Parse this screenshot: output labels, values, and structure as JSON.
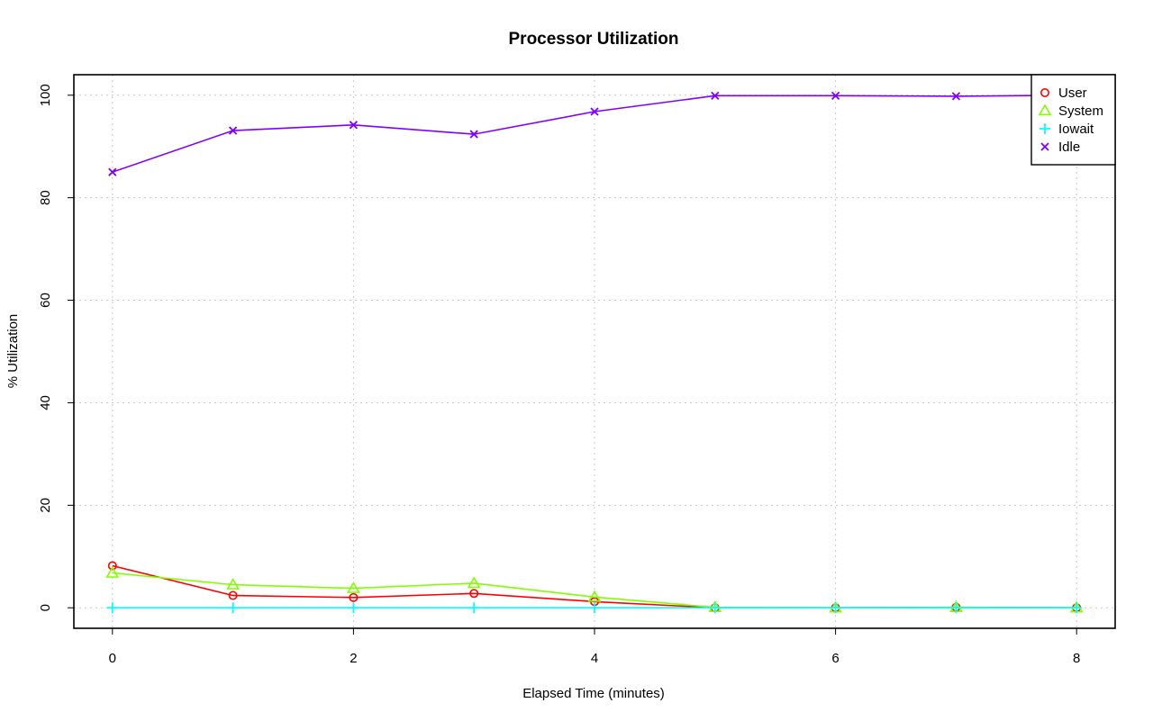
{
  "chart_data": {
    "type": "line",
    "title": "Processor Utilization",
    "xlabel": "Elapsed Time (minutes)",
    "ylabel": "% Utilization",
    "xlim": [
      -0.32,
      8.32
    ],
    "ylim": [
      -4,
      104
    ],
    "xticks": [
      0,
      2,
      4,
      6,
      8
    ],
    "yticks": [
      0,
      20,
      40,
      60,
      80,
      100
    ],
    "grid": true,
    "legend_position": "top-right",
    "x": [
      0,
      1,
      2,
      3,
      4,
      5,
      6,
      7,
      8
    ],
    "series": [
      {
        "name": "User",
        "color": "#ff0000",
        "marker": "circle",
        "values": [
          8.2,
          2.4,
          2.0,
          2.8,
          1.2,
          0.0,
          0.0,
          0.1,
          0.0
        ]
      },
      {
        "name": "System",
        "color": "#80ff00",
        "marker": "triangle",
        "values": [
          6.8,
          4.5,
          3.8,
          4.8,
          2.1,
          0.1,
          0.0,
          0.1,
          0.0
        ]
      },
      {
        "name": "Iowait",
        "color": "#00ffff",
        "marker": "plus",
        "values": [
          0.0,
          0.0,
          0.0,
          0.0,
          0.0,
          0.0,
          0.0,
          0.0,
          0.0
        ]
      },
      {
        "name": "Idle",
        "color": "#8000ff",
        "marker": "cross",
        "values": [
          85.0,
          93.1,
          94.2,
          92.4,
          96.8,
          99.9,
          99.9,
          99.8,
          100.0
        ]
      }
    ]
  }
}
